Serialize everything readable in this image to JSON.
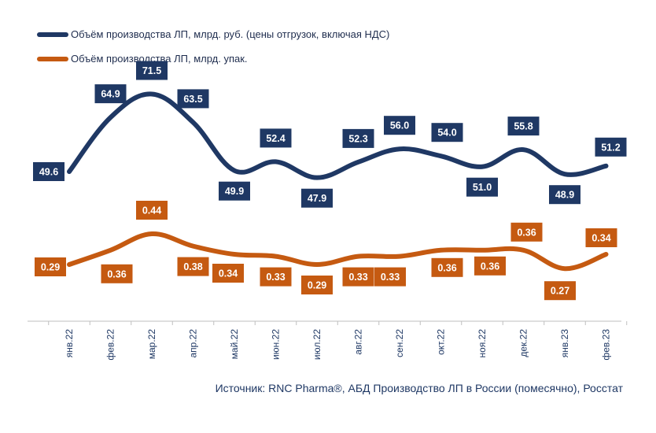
{
  "chart_data": {
    "type": "line",
    "categories": [
      "янв.22",
      "фев.22",
      "мар.22",
      "апр.22",
      "май.22",
      "июн.22",
      "июл.22",
      "авг.22",
      "сен.22",
      "окт.22",
      "ноя.22",
      "дек.22",
      "янв.23",
      "фев.23"
    ],
    "series": [
      {
        "name": "Объём производства ЛП, млрд. руб. (цены отгрузок, включая НДС)",
        "color": "#1f3864",
        "values": [
          49.6,
          64.9,
          71.5,
          63.5,
          49.9,
          52.4,
          47.9,
          52.3,
          56.0,
          54.0,
          51.0,
          55.8,
          48.9,
          51.2
        ],
        "labels": [
          "49.6",
          "64.9",
          "71.5",
          "63.5",
          "49.9",
          "52.4",
          "47.9",
          "52.3",
          "56.0",
          "54.0",
          "51.0",
          "55.8",
          "48.9",
          "51.2"
        ],
        "label_side": [
          "above",
          "above",
          "above",
          "above",
          "below",
          "above",
          "below",
          "above",
          "above",
          "above",
          "below",
          "above",
          "below",
          "above"
        ]
      },
      {
        "name": "Объём производства ЛП, млрд. упак.",
        "color": "#c55a11",
        "values": [
          0.29,
          0.36,
          0.44,
          0.38,
          0.34,
          0.33,
          0.29,
          0.33,
          0.33,
          0.36,
          0.36,
          0.36,
          0.27,
          0.34
        ],
        "labels": [
          "0.29",
          "0.36",
          "0.44",
          "0.38",
          "0.34",
          "0.33",
          "0.29",
          "0.33",
          "0.33",
          "0.36",
          "0.36",
          "0.36",
          "0.27",
          "0.34"
        ],
        "label_side": [
          "center",
          "below",
          "above",
          "below",
          "below",
          "below",
          "below",
          "below",
          "below",
          "below",
          "below",
          "above",
          "below",
          "above"
        ]
      }
    ],
    "source": "Источник: RNC Pharma®, АБД Производство ЛП в России (помесячно), Росстат",
    "legend_position": "top-left",
    "grid": false
  }
}
